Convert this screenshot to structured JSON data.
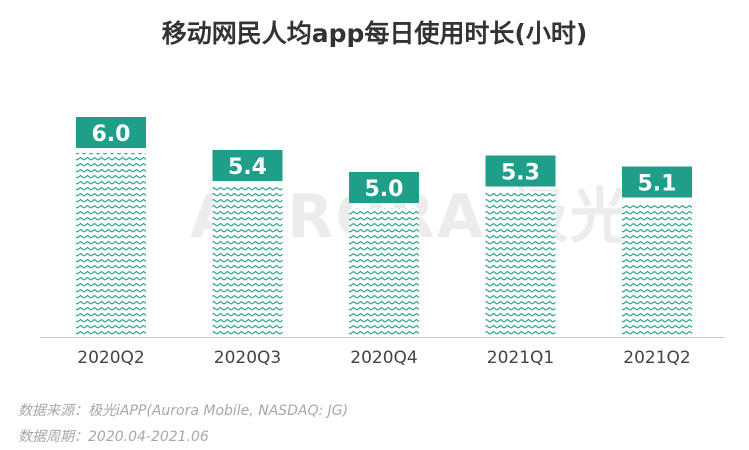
{
  "chart_data": {
    "type": "bar",
    "title": "移动网民人均app每日使用时长(小时)",
    "categories": [
      "2020Q2",
      "2020Q3",
      "2020Q4",
      "2021Q1",
      "2021Q2"
    ],
    "values": [
      6.0,
      5.4,
      5.0,
      5.3,
      5.1
    ],
    "data_labels": [
      "6.0",
      "5.4",
      "5.0",
      "5.3",
      "5.1"
    ],
    "xlabel": "",
    "ylabel": "",
    "grid": false,
    "colors": {
      "label_box": "#1f9e89",
      "pattern": "#1f9e89",
      "axis": "#cccccc"
    }
  },
  "watermark": "AURORA 极光",
  "footer": {
    "source": "数据来源：极光iAPP(Aurora Mobile, NASDAQ: JG)",
    "period": "数据周期：2020.04-2021.06"
  }
}
